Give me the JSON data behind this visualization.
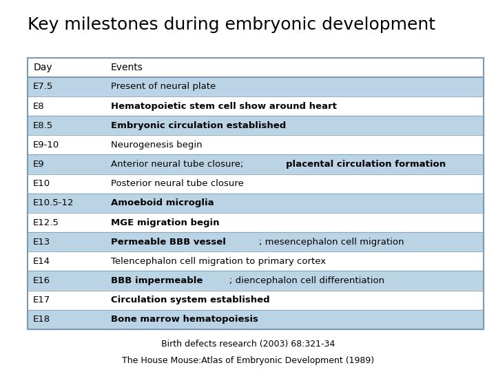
{
  "title": "Key milestones during embryonic development",
  "title_fontsize": 18,
  "title_color": "#000000",
  "col_headers": [
    "Day",
    "Events"
  ],
  "rows": [
    {
      "day": "E7.5",
      "event": "Present of neural plate",
      "bold": false,
      "shaded": true,
      "mixed": false
    },
    {
      "day": "E8",
      "event": "Hematopoietic stem cell show around heart",
      "bold": true,
      "shaded": false,
      "mixed": false
    },
    {
      "day": "E8.5",
      "event": "Embryonic circulation established",
      "bold": true,
      "shaded": true,
      "mixed": false
    },
    {
      "day": "E9-10",
      "event": "Neurogenesis begin",
      "bold": false,
      "shaded": false,
      "mixed": false
    },
    {
      "day": "E9",
      "event_parts": [
        [
          "Anterior neural tube closure; ",
          false
        ],
        [
          "placental circulation formation",
          true
        ]
      ],
      "shaded": true,
      "mixed": true
    },
    {
      "day": "E10",
      "event": "Posterior neural tube closure",
      "bold": false,
      "shaded": false,
      "mixed": false
    },
    {
      "day": "E10.5-12",
      "event": "Amoeboid microglia",
      "bold": true,
      "shaded": true,
      "mixed": false
    },
    {
      "day": "E12.5",
      "event": "MGE migration begin",
      "bold": true,
      "shaded": false,
      "mixed": false
    },
    {
      "day": "E13",
      "event_parts": [
        [
          "Permeable BBB vessel",
          true
        ],
        [
          "; mesencephalon cell migration",
          false
        ]
      ],
      "shaded": true,
      "mixed": true
    },
    {
      "day": "E14",
      "event": "Telencephalon cell migration to primary cortex",
      "bold": false,
      "shaded": false,
      "mixed": false
    },
    {
      "day": "E16",
      "event_parts": [
        [
          "BBB impermeable",
          true
        ],
        [
          "; diencephalon cell differentiation",
          false
        ]
      ],
      "shaded": true,
      "mixed": true
    },
    {
      "day": "E17",
      "event": "Circulation system established",
      "bold": true,
      "shaded": false,
      "mixed": false
    },
    {
      "day": "E18",
      "event": "Bone marrow hematopoiesis",
      "bold": true,
      "shaded": true,
      "mixed": false
    }
  ],
  "shaded_color": "#bad4e6",
  "white_color": "#ffffff",
  "border_color": "#7a9ab5",
  "text_color": "#000000",
  "font_size": 9.5,
  "header_font_size": 10,
  "footer_line1": "Birth defects research (2003) 68:321-34",
  "footer_line2": "The House Mouse:Atlas of Embryonic Development (1989)",
  "footer_fontsize": 9
}
